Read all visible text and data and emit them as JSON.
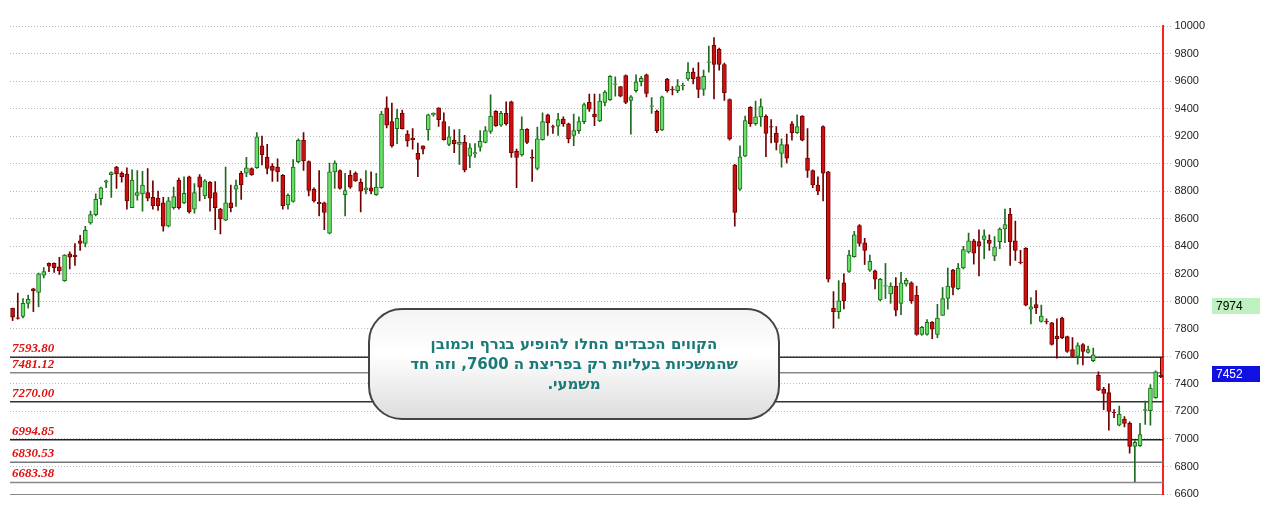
{
  "chart_data": {
    "type": "candlestick",
    "categories": [
      null,
      null,
      null,
      null,
      null,
      null,
      null,
      null,
      null,
      null,
      null,
      null,
      null,
      null,
      null,
      null,
      null,
      null,
      null,
      null,
      null,
      null,
      null,
      null,
      null,
      null,
      null,
      null,
      null,
      null,
      null,
      null,
      null,
      null,
      null,
      null,
      null,
      null,
      null,
      null,
      null,
      null,
      null,
      null,
      null,
      null,
      null,
      null,
      null,
      null,
      null,
      null,
      null,
      null,
      null,
      null,
      null,
      null,
      null,
      null,
      null,
      null,
      null,
      null,
      null,
      null,
      null,
      null,
      null,
      null,
      null,
      null,
      null,
      null,
      null,
      null,
      null,
      null,
      null,
      null,
      null,
      null,
      null,
      null,
      null,
      null,
      null,
      null,
      null,
      null,
      null,
      null,
      null,
      null,
      null,
      null,
      null,
      null,
      null,
      null,
      null,
      null,
      null,
      null,
      null,
      null,
      null,
      null,
      null,
      null,
      null,
      null,
      null,
      null,
      null,
      null,
      null,
      null,
      null,
      null,
      null,
      null,
      null,
      null,
      null,
      null,
      null,
      null,
      null,
      null,
      null,
      null,
      null,
      null,
      null,
      null,
      null,
      null,
      null,
      null,
      null,
      null,
      null,
      null,
      null,
      null,
      null,
      null,
      null,
      null,
      null,
      null,
      null,
      null,
      null,
      null,
      null,
      null,
      null,
      null,
      null,
      null,
      null,
      null,
      null,
      null,
      null,
      null,
      null,
      null,
      null,
      null,
      null,
      null,
      null,
      null,
      null,
      null,
      null,
      null,
      null,
      null,
      null,
      null,
      null,
      null,
      null,
      null,
      null,
      null,
      null,
      null,
      null,
      null,
      null,
      null,
      null,
      null,
      null,
      null,
      null,
      null,
      null,
      null,
      null,
      null,
      null,
      null,
      null,
      null,
      null,
      null,
      null,
      null,
      null,
      null,
      null,
      null,
      null,
      null,
      null,
      null
    ],
    "ohlc": [
      [
        7950,
        7950,
        7860,
        7885
      ],
      [
        7880,
        8060,
        7870,
        7875
      ],
      [
        7890,
        8020,
        7880,
        7985
      ],
      [
        7985,
        8045,
        7950,
        8015
      ],
      [
        8090,
        8095,
        7925,
        8075
      ],
      [
        8065,
        8205,
        7960,
        8200
      ],
      [
        8190,
        8245,
        8170,
        8215
      ],
      [
        8275,
        8280,
        8215,
        8255
      ],
      [
        8275,
        8280,
        8210,
        8245
      ],
      [
        8250,
        8320,
        8195,
        8220
      ],
      [
        8150,
        8340,
        8145,
        8335
      ],
      [
        8345,
        8360,
        8235,
        8320
      ],
      [
        8335,
        8420,
        8260,
        8325
      ],
      [
        8440,
        8480,
        8370,
        8420
      ],
      [
        8420,
        8545,
        8395,
        8515
      ],
      [
        8570,
        8655,
        8560,
        8630
      ],
      [
        8630,
        8780,
        8620,
        8740
      ],
      [
        8745,
        8830,
        8700,
        8825
      ],
      [
        8865,
        8880,
        8825,
        8875
      ],
      [
        8920,
        8940,
        8755,
        8935
      ],
      [
        8975,
        8980,
        8820,
        8925
      ],
      [
        8930,
        8940,
        8865,
        8905
      ],
      [
        8925,
        8970,
        8670,
        8730
      ],
      [
        8680,
        8955,
        8680,
        8880
      ],
      [
        8770,
        8950,
        8735,
        8790
      ],
      [
        8780,
        8945,
        8655,
        8845
      ],
      [
        8790,
        8965,
        8730,
        8750
      ],
      [
        8755,
        8875,
        8670,
        8695
      ],
      [
        8750,
        8800,
        8660,
        8695
      ],
      [
        8715,
        8755,
        8510,
        8545
      ],
      [
        8545,
        8755,
        8540,
        8730
      ],
      [
        8680,
        8830,
        8670,
        8760
      ],
      [
        8880,
        8895,
        8670,
        8680
      ],
      [
        8715,
        8905,
        8710,
        8785
      ],
      [
        8905,
        8910,
        8640,
        8650
      ],
      [
        8670,
        8855,
        8640,
        8790
      ],
      [
        8905,
        8920,
        8730,
        8830
      ],
      [
        8765,
        8885,
        8745,
        8875
      ],
      [
        8865,
        8870,
        8655,
        8750
      ],
      [
        8790,
        8870,
        8520,
        8680
      ],
      [
        8670,
        8675,
        8490,
        8600
      ],
      [
        8590,
        8975,
        8585,
        8715
      ],
      [
        8715,
        8845,
        8650,
        8680
      ],
      [
        8815,
        8880,
        8690,
        8840
      ],
      [
        8930,
        8945,
        8740,
        8845
      ],
      [
        8930,
        9045,
        8905,
        8970
      ],
      [
        8965,
        8970,
        8915,
        8920
      ],
      [
        8970,
        9225,
        8965,
        9195
      ],
      [
        9130,
        9200,
        8990,
        9065
      ],
      [
        9045,
        9140,
        8925,
        8965
      ],
      [
        8980,
        9000,
        8870,
        8950
      ],
      [
        8975,
        9035,
        8870,
        8940
      ],
      [
        8915,
        8920,
        8670,
        8695
      ],
      [
        8700,
        8780,
        8670,
        8770
      ],
      [
        8725,
        9030,
        8720,
        8975
      ],
      [
        9015,
        9180,
        9005,
        9170
      ],
      [
        9170,
        9225,
        8950,
        9020
      ],
      [
        9015,
        9020,
        8765,
        8805
      ],
      [
        8815,
        8825,
        8720,
        8730
      ],
      [
        8720,
        8950,
        8620,
        8710
      ],
      [
        8715,
        8720,
        8520,
        8645
      ],
      [
        8495,
        9005,
        8490,
        8940
      ],
      [
        8940,
        9020,
        8820,
        9005
      ],
      [
        8950,
        8955,
        8815,
        8820
      ],
      [
        8775,
        8930,
        8620,
        8805
      ],
      [
        8915,
        8950,
        8820,
        8830
      ],
      [
        8930,
        8940,
        8870,
        8875
      ],
      [
        8865,
        8890,
        8650,
        8800
      ],
      [
        8810,
        8950,
        8780,
        8825
      ],
      [
        8825,
        8940,
        8780,
        8800
      ],
      [
        8775,
        8930,
        8770,
        8830
      ],
      [
        8825,
        9380,
        8820,
        9360
      ],
      [
        9405,
        9485,
        9260,
        9280
      ],
      [
        9305,
        9440,
        9120,
        9130
      ],
      [
        9255,
        9395,
        9145,
        9330
      ],
      [
        9365,
        9390,
        9250,
        9255
      ],
      [
        9215,
        9240,
        9125,
        9165
      ],
      [
        9185,
        9255,
        9105,
        9175
      ],
      [
        9075,
        9150,
        8905,
        9030
      ],
      [
        9130,
        9130,
        9070,
        9105
      ],
      [
        9245,
        9360,
        9170,
        9355
      ],
      [
        9355,
        9370,
        9345,
        9365
      ],
      [
        9405,
        9405,
        9270,
        9320
      ],
      [
        9305,
        9370,
        9170,
        9175
      ],
      [
        9140,
        9270,
        9130,
        9195
      ],
      [
        9170,
        9245,
        9080,
        9145
      ],
      [
        9140,
        9250,
        8995,
        9155
      ],
      [
        9155,
        9205,
        8940,
        8955
      ],
      [
        9055,
        9145,
        8970,
        9115
      ],
      [
        9070,
        9145,
        9045,
        9080
      ],
      [
        9120,
        9240,
        9090,
        9163
      ],
      [
        9155,
        9270,
        9150,
        9240
      ],
      [
        9235,
        9500,
        9220,
        9345
      ],
      [
        9380,
        9385,
        9270,
        9275
      ],
      [
        9280,
        9380,
        9270,
        9365
      ],
      [
        9365,
        9450,
        9280,
        9290
      ],
      [
        9450,
        9455,
        9045,
        9080
      ],
      [
        9090,
        9105,
        8825,
        9045
      ],
      [
        9063,
        9340,
        9055,
        9250
      ],
      [
        9250,
        9255,
        9145,
        9155
      ],
      [
        9045,
        9100,
        8870,
        9040
      ],
      [
        8965,
        9265,
        8955,
        9180
      ],
      [
        9175,
        9370,
        9170,
        9305
      ],
      [
        9355,
        9360,
        9205,
        9295
      ],
      [
        9270,
        9280,
        9220,
        9265
      ],
      [
        9273,
        9365,
        9205,
        9320
      ],
      [
        9323,
        9340,
        9270,
        9290
      ],
      [
        9290,
        9295,
        9150,
        9180
      ],
      [
        9205,
        9360,
        9130,
        9240
      ],
      [
        9240,
        9340,
        9220,
        9305
      ],
      [
        9305,
        9440,
        9290,
        9430
      ],
      [
        9445,
        9505,
        9380,
        9395
      ],
      [
        9360,
        9505,
        9275,
        9340
      ],
      [
        9310,
        9505,
        9305,
        9455
      ],
      [
        9445,
        9530,
        9420,
        9520
      ],
      [
        9465,
        9640,
        9460,
        9635
      ],
      [
        9575,
        9630,
        9490,
        9580
      ],
      [
        9560,
        9560,
        9485,
        9490
      ],
      [
        9640,
        9645,
        9435,
        9445
      ],
      [
        9460,
        9495,
        9215,
        9485
      ],
      [
        9530,
        9645,
        9520,
        9595
      ],
      [
        9595,
        9635,
        9565,
        9620
      ],
      [
        9645,
        9650,
        9485,
        9510
      ],
      [
        9415,
        9480,
        9365,
        9420
      ],
      [
        9380,
        9390,
        9225,
        9240
      ],
      [
        9245,
        9490,
        9240,
        9485
      ],
      [
        9615,
        9620,
        9520,
        9530
      ],
      [
        9540,
        9560,
        9500,
        9535
      ],
      [
        9530,
        9610,
        9515,
        9565
      ],
      [
        9565,
        9585,
        9535,
        9570
      ],
      [
        9615,
        9735,
        9605,
        9665
      ],
      [
        9665,
        9695,
        9580,
        9615
      ],
      [
        9630,
        9735,
        9480,
        9540
      ],
      [
        9540,
        9680,
        9495,
        9635
      ],
      [
        9735,
        9855,
        9665,
        9740
      ],
      [
        9860,
        9915,
        9470,
        9720
      ],
      [
        9830,
        9840,
        9680,
        9720
      ],
      [
        9720,
        9730,
        9460,
        9515
      ],
      [
        9465,
        9470,
        9170,
        9180
      ],
      [
        8990,
        8995,
        8545,
        8645
      ],
      [
        8815,
        9130,
        8805,
        9050
      ],
      [
        9055,
        9345,
        9050,
        9312
      ],
      [
        9410,
        9415,
        9270,
        9290
      ],
      [
        9290,
        9455,
        9280,
        9340
      ],
      [
        9340,
        9470,
        9270,
        9415
      ],
      [
        9345,
        9355,
        9050,
        9220
      ],
      [
        9270,
        9320,
        9150,
        9265
      ],
      [
        9220,
        9270,
        9100,
        9155
      ],
      [
        9075,
        9180,
        8975,
        9138
      ],
      [
        9138,
        9215,
        9005,
        9040
      ],
      [
        9290,
        9305,
        9170,
        9225
      ],
      [
        9225,
        9355,
        9220,
        9270
      ],
      [
        9345,
        9350,
        9165,
        9170
      ],
      [
        9040,
        9255,
        8900,
        8950
      ],
      [
        8950,
        8955,
        8825,
        8845
      ],
      [
        8845,
        8905,
        8775,
        8800
      ],
      [
        9270,
        9275,
        8730,
        8930
      ],
      [
        8940,
        8945,
        8140,
        8160
      ],
      [
        7948,
        8070,
        7805,
        7925
      ],
      [
        7925,
        8150,
        7875,
        8003
      ],
      [
        8135,
        8200,
        7945,
        8003
      ],
      [
        8217,
        8370,
        8210,
        8335
      ],
      [
        8325,
        8508,
        8320,
        8483
      ],
      [
        8550,
        8558,
        8400,
        8420
      ],
      [
        8425,
        8458,
        8267,
        8370
      ],
      [
        8227,
        8335,
        8217,
        8290
      ],
      [
        8222,
        8227,
        8090,
        8160
      ],
      [
        8010,
        8167,
        8003,
        8160
      ],
      [
        8110,
        8275,
        8020,
        8115
      ],
      [
        8053,
        8135,
        7985,
        8110
      ],
      [
        8110,
        8172,
        7893,
        7935
      ],
      [
        7985,
        8210,
        7903,
        8135
      ],
      [
        8125,
        8167,
        8110,
        8152
      ],
      [
        8135,
        8142,
        7985,
        8003
      ],
      [
        8043,
        8110,
        7753,
        7760
      ],
      [
        7760,
        7818,
        7753,
        7810
      ],
      [
        7760,
        7868,
        7753,
        7848
      ],
      [
        7848,
        7853,
        7728,
        7798
      ],
      [
        7760,
        7978,
        7735,
        7878
      ],
      [
        7898,
        8100,
        7898,
        8020
      ],
      [
        8020,
        8242,
        7943,
        8110
      ],
      [
        8227,
        8232,
        8047,
        8100
      ],
      [
        8092,
        8275,
        8085,
        8242
      ],
      [
        8242,
        8400,
        8235,
        8375
      ],
      [
        8358,
        8495,
        8350,
        8440
      ],
      [
        8440,
        8450,
        8270,
        8350
      ],
      [
        8433,
        8520,
        8185,
        8400
      ],
      [
        8450,
        8520,
        8310,
        8475
      ],
      [
        8445,
        8483,
        8370,
        8420
      ],
      [
        8327,
        8470,
        8295,
        8395
      ],
      [
        8433,
        8533,
        8383,
        8525
      ],
      [
        8525,
        8670,
        8425,
        8558
      ],
      [
        8632,
        8675,
        8260,
        8433
      ],
      [
        8440,
        8583,
        8297,
        8370
      ],
      [
        8285,
        8370,
        8272,
        8280
      ],
      [
        8385,
        8390,
        7967,
        7972
      ],
      [
        7943,
        8027,
        7835,
        7960
      ],
      [
        7977,
        8077,
        7910,
        7952
      ],
      [
        7853,
        7973,
        7848,
        7893
      ],
      [
        7855,
        7873,
        7835,
        7850
      ],
      [
        7843,
        7848,
        7681,
        7686
      ],
      [
        7748,
        7873,
        7586,
        7728
      ],
      [
        7878,
        7885,
        7728,
        7736
      ],
      [
        7743,
        7748,
        7629,
        7636
      ],
      [
        7649,
        7736,
        7594,
        7599
      ],
      [
        7599,
        7698,
        7544,
        7679
      ],
      [
        7686,
        7693,
        7537,
        7636
      ],
      [
        7629,
        7674,
        7624,
        7649
      ],
      [
        7569,
        7661,
        7561,
        7611
      ],
      [
        7462,
        7487,
        7350,
        7355
      ],
      [
        7362,
        7375,
        7213,
        7330
      ],
      [
        7337,
        7400,
        7063,
        7200
      ],
      [
        7195,
        7213,
        7155,
        7190
      ],
      [
        7100,
        7238,
        7095,
        7180
      ],
      [
        7145,
        7163,
        7088,
        7113
      ],
      [
        7113,
        7125,
        6896,
        6946
      ],
      [
        6946,
        6988,
        6690,
        6976
      ],
      [
        6951,
        7113,
        6946,
        7031
      ],
      [
        7208,
        7275,
        7105,
        7213
      ],
      [
        7205,
        7395,
        7100,
        7370
      ],
      [
        7300,
        7495,
        7295,
        7487
      ],
      [
        7462,
        7594,
        7445,
        7452
      ]
    ],
    "ylim": [
      6600,
      10000
    ],
    "yticks": [
      6600,
      6800,
      7000,
      7200,
      7400,
      7600,
      7800,
      8000,
      8200,
      8400,
      8600,
      8800,
      9000,
      9200,
      9400,
      9600,
      9800,
      10000
    ],
    "grid": "y",
    "legend": false,
    "ref_lines": [
      {
        "axis": "y",
        "value": 7593.8,
        "label": "7593.80",
        "color": "#333333"
      },
      {
        "axis": "y",
        "value": 7481.12,
        "label": "7481.12",
        "color": "#888888"
      },
      {
        "axis": "y",
        "value": 7270,
        "label": "7270.00",
        "color": "#333333"
      },
      {
        "axis": "y",
        "value": 6994.85,
        "label": "6994.85",
        "color": "#222222"
      },
      {
        "axis": "y",
        "value": 6830.53,
        "label": "6830.53",
        "color": "#777777"
      },
      {
        "axis": "y",
        "value": 6683.38,
        "label": "6683.38",
        "color": "#888888"
      }
    ],
    "annotations": [
      "הקווים הכבדים החלו להופיע בגרף  וכמובן שהמשכיות  בעליות רק בפריצת ה 7600, וזה חד משמעי.",
      "7974",
      "7452"
    ]
  }
}
